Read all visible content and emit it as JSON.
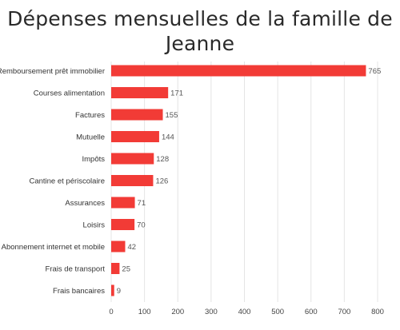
{
  "chart_data": {
    "type": "bar",
    "orientation": "horizontal",
    "title_lines": [
      "Dépenses mensuelles de la famille de",
      "Jeanne"
    ],
    "categories": [
      "Remboursement prêt immobilier",
      "Courses alimentation",
      "Factures",
      "Mutuelle",
      "Impôts",
      "Cantine et périscolaire",
      "Assurances",
      "Loisirs",
      "Abonnement internet et mobile",
      "Frais de transport",
      "Frais bancaires"
    ],
    "values": [
      765,
      171,
      155,
      144,
      128,
      126,
      71,
      70,
      42,
      25,
      9
    ],
    "value_labels": [
      "765",
      "171",
      "155",
      "144",
      "128",
      "126",
      "71",
      "70",
      "42",
      "25",
      "9"
    ],
    "xticks": [
      0,
      100,
      200,
      300,
      400,
      500,
      600,
      700,
      800
    ],
    "xlim": [
      0,
      800
    ],
    "xlabel": "",
    "ylabel": "",
    "bar_color": "#f23b36",
    "grid": true,
    "grid_color": "#e4e4e4"
  }
}
